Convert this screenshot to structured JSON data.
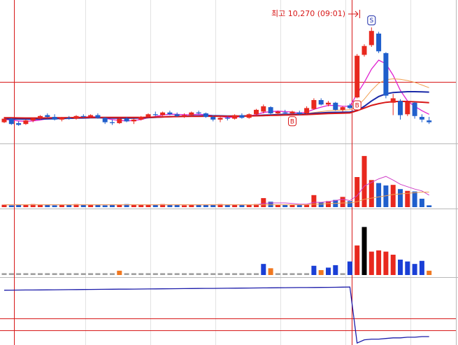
{
  "chart_data": [
    {
      "type": "candlestick",
      "open": [
        9200,
        9240,
        9190,
        9180,
        9220,
        9240,
        9280,
        9260,
        9230,
        9250,
        9240,
        9270,
        9260,
        9280,
        9250,
        9200,
        9190,
        9240,
        9210,
        9230,
        9260,
        9290,
        9280,
        9310,
        9290,
        9270,
        9280,
        9310,
        9300,
        9260,
        9230,
        9250,
        9240,
        9280,
        9250,
        9290,
        9320,
        9370,
        9300,
        9310,
        9300,
        9310,
        9300,
        9350,
        9450,
        9400,
        9420,
        9340,
        9390,
        9480,
        9960,
        10070,
        10200,
        9980,
        9420,
        9440,
        9290,
        9420,
        9260,
        9220
      ],
      "high": [
        9260,
        9250,
        9210,
        9230,
        9250,
        9280,
        9300,
        9290,
        9260,
        9270,
        9280,
        9290,
        9290,
        9300,
        9260,
        9230,
        9250,
        9260,
        9240,
        9270,
        9300,
        9320,
        9320,
        9330,
        9310,
        9300,
        9320,
        9330,
        9310,
        9280,
        9260,
        9270,
        9290,
        9300,
        9300,
        9350,
        9400,
        9380,
        9330,
        9340,
        9330,
        9330,
        9380,
        9470,
        9470,
        9440,
        9430,
        9380,
        9410,
        9970,
        10080,
        10270,
        10220,
        9990,
        9520,
        9460,
        9440,
        9430,
        9290,
        9260
      ],
      "low": [
        9190,
        9170,
        9160,
        9170,
        9200,
        9230,
        9250,
        9220,
        9210,
        9230,
        9230,
        9250,
        9250,
        9240,
        9180,
        9170,
        9180,
        9200,
        9180,
        9220,
        9250,
        9270,
        9270,
        9280,
        9260,
        9250,
        9270,
        9290,
        9250,
        9210,
        9200,
        9220,
        9230,
        9240,
        9240,
        9280,
        9300,
        9280,
        9280,
        9290,
        9290,
        9280,
        9290,
        9340,
        9390,
        9380,
        9330,
        9320,
        9350,
        9470,
        9940,
        10050,
        9980,
        9470,
        9280,
        9230,
        9270,
        9240,
        9200,
        9180
      ],
      "close": [
        9240,
        9180,
        9170,
        9220,
        9240,
        9270,
        9260,
        9230,
        9250,
        9240,
        9270,
        9260,
        9280,
        9250,
        9200,
        9190,
        9240,
        9210,
        9230,
        9260,
        9290,
        9280,
        9310,
        9290,
        9270,
        9280,
        9310,
        9300,
        9260,
        9230,
        9250,
        9240,
        9280,
        9250,
        9290,
        9340,
        9380,
        9300,
        9320,
        9300,
        9320,
        9290,
        9360,
        9450,
        9400,
        9420,
        9340,
        9370,
        9360,
        9950,
        10060,
        10230,
        10000,
        9500,
        9470,
        9280,
        9430,
        9270,
        9230,
        9200
      ],
      "up_color": "#e8281e",
      "down_color": "#1f5fcc",
      "ylim": [
        9000,
        10500
      ],
      "series": [
        {
          "color": "#e020d0",
          "values": [
            9230,
            9225,
            9215,
            9210,
            9215,
            9225,
            9240,
            9250,
            9250,
            9250,
            9255,
            9258,
            9262,
            9260,
            9245,
            9230,
            9220,
            9215,
            9220,
            9230,
            9250,
            9265,
            9280,
            9290,
            9290,
            9285,
            9285,
            9290,
            9285,
            9275,
            9265,
            9255,
            9255,
            9265,
            9270,
            9285,
            9310,
            9320,
            9325,
            9320,
            9315,
            9305,
            9315,
            9345,
            9370,
            9390,
            9390,
            9380,
            9380,
            9520,
            9650,
            9800,
            9900,
            9860,
            9730,
            9560,
            9440,
            9380,
            9330,
            9290
          ]
        },
        {
          "color": "#f0a050",
          "values": [
            9240,
            9240,
            9238,
            9236,
            9235,
            9236,
            9238,
            9240,
            9242,
            9244,
            9246,
            9248,
            9250,
            9250,
            9248,
            9245,
            9243,
            9242,
            9242,
            9244,
            9248,
            9252,
            9256,
            9260,
            9263,
            9265,
            9267,
            9269,
            9270,
            9270,
            9268,
            9266,
            9265,
            9266,
            9268,
            9272,
            9280,
            9285,
            9290,
            9292,
            9294,
            9295,
            9298,
            9310,
            9320,
            9330,
            9335,
            9338,
            9340,
            9380,
            9460,
            9560,
            9640,
            9680,
            9690,
            9685,
            9670,
            9650,
            9620,
            9590
          ]
        },
        {
          "color": "#1a2aa8",
          "values": [
            9240,
            9238,
            9236,
            9235,
            9235,
            9236,
            9238,
            9240,
            9242,
            9244,
            9246,
            9248,
            9250,
            9250,
            9249,
            9247,
            9246,
            9246,
            9247,
            9249,
            9252,
            9256,
            9260,
            9263,
            9266,
            9268,
            9270,
            9272,
            9273,
            9273,
            9272,
            9271,
            9270,
            9271,
            9272,
            9275,
            9280,
            9283,
            9286,
            9288,
            9290,
            9291,
            9293,
            9300,
            9305,
            9310,
            9312,
            9313,
            9315,
            9330,
            9380,
            9440,
            9490,
            9520,
            9535,
            9540,
            9545,
            9545,
            9542,
            9540
          ]
        },
        {
          "color": "#d81818",
          "values": [
            9250,
            9250,
            9249,
            9248,
            9248,
            9248,
            9249,
            9250,
            9251,
            9252,
            9253,
            9254,
            9255,
            9255,
            9255,
            9254,
            9254,
            9254,
            9254,
            9255,
            9256,
            9258,
            9260,
            9262,
            9264,
            9265,
            9266,
            9267,
            9268,
            9268,
            9268,
            9268,
            9268,
            9269,
            9270,
            9272,
            9275,
            9277,
            9279,
            9281,
            9283,
            9284,
            9286,
            9290,
            9294,
            9298,
            9300,
            9302,
            9305,
            9330,
            9360,
            9390,
            9410,
            9425,
            9432,
            9435,
            9434,
            9430,
            9426,
            9420
          ]
        }
      ],
      "annotation": "최고 10,270 (09:01)",
      "markers": [
        {
          "index": 40,
          "label": "B"
        },
        {
          "index": 49,
          "label": "B"
        },
        {
          "index": 51,
          "label": "S"
        }
      ]
    },
    {
      "type": "bar",
      "values": [
        4,
        3,
        4,
        4,
        5,
        4,
        4,
        3,
        4,
        4,
        5,
        4,
        4,
        4,
        3,
        4,
        4,
        5,
        4,
        4,
        4,
        4,
        5,
        4,
        4,
        3,
        4,
        4,
        4,
        4,
        5,
        4,
        4,
        4,
        4,
        5,
        15,
        9,
        4,
        4,
        4,
        4,
        4,
        20,
        8,
        10,
        12,
        17,
        10,
        50,
        85,
        45,
        40,
        36,
        37,
        30,
        27,
        26,
        14,
        3
      ],
      "ylim": [
        0,
        100
      ],
      "series": [
        {
          "color": "#d040c8",
          "values": [
            4,
            4,
            4,
            4,
            4,
            4,
            4,
            4,
            4,
            4,
            4,
            4,
            4,
            4,
            4,
            4,
            4,
            4,
            4,
            4,
            4,
            4,
            4,
            4,
            4,
            4,
            4,
            4,
            4,
            4,
            4,
            4,
            4,
            4,
            4,
            4,
            6,
            7,
            7,
            7,
            6,
            5,
            5,
            8,
            8,
            9,
            11,
            13,
            11,
            19,
            35,
            41,
            47,
            51,
            45,
            38,
            34,
            30,
            27,
            20
          ]
        },
        {
          "color": "#f0a050",
          "values": [
            4,
            4,
            4,
            4,
            4,
            4,
            4,
            4,
            4,
            4,
            4,
            4,
            4,
            4,
            4,
            4,
            4,
            4,
            4,
            4,
            4,
            4,
            4,
            4,
            4,
            4,
            4,
            4,
            4,
            4,
            4,
            4,
            4,
            4,
            4,
            4,
            4,
            4,
            4,
            4,
            4,
            4,
            4,
            5,
            5,
            6,
            6,
            7,
            7,
            9,
            13,
            15,
            17,
            19,
            21,
            22,
            23,
            24,
            25,
            25
          ]
        }
      ]
    },
    {
      "type": "bar",
      "values": [
        3,
        3,
        3,
        3,
        3,
        3,
        3,
        3,
        3,
        3,
        3,
        3,
        3,
        3,
        3,
        3,
        7,
        3,
        3,
        3,
        3,
        3,
        3,
        3,
        3,
        3,
        3,
        3,
        3,
        3,
        3,
        3,
        3,
        3,
        3,
        3,
        18,
        11,
        3,
        3,
        3,
        3,
        3,
        15,
        8,
        12,
        16,
        3,
        22,
        48,
        78,
        38,
        40,
        38,
        33,
        25,
        22,
        18,
        23,
        7
      ],
      "colors": [
        "#a0a0a0",
        "#a0a0a0",
        "#a0a0a0",
        "#a0a0a0",
        "#a0a0a0",
        "#a0a0a0",
        "#a0a0a0",
        "#a0a0a0",
        "#a0a0a0",
        "#a0a0a0",
        "#a0a0a0",
        "#a0a0a0",
        "#a0a0a0",
        "#a0a0a0",
        "#a0a0a0",
        "#a0a0a0",
        "#f07820",
        "#a0a0a0",
        "#a0a0a0",
        "#a0a0a0",
        "#a0a0a0",
        "#a0a0a0",
        "#a0a0a0",
        "#a0a0a0",
        "#a0a0a0",
        "#a0a0a0",
        "#a0a0a0",
        "#a0a0a0",
        "#a0a0a0",
        "#a0a0a0",
        "#a0a0a0",
        "#a0a0a0",
        "#a0a0a0",
        "#a0a0a0",
        "#a0a0a0",
        "#a0a0a0",
        "#1a3fd6",
        "#f07820",
        "#a0a0a0",
        "#a0a0a0",
        "#a0a0a0",
        "#a0a0a0",
        "#a0a0a0",
        "#1a3fd6",
        "#f07820",
        "#1a3fd6",
        "#1a3fd6",
        "#a0a0a0",
        "#1a3fd6",
        "#e8281e",
        "#000000",
        "#e8281e",
        "#e8281e",
        "#e8281e",
        "#e8281e",
        "#1a3fd6",
        "#1a3fd6",
        "#1a3fd6",
        "#1a3fd6",
        "#f07820"
      ],
      "ylim": [
        0,
        100
      ]
    },
    {
      "type": "line",
      "values": [
        84,
        84.1,
        84.2,
        84.3,
        84.4,
        84.5,
        84.6,
        84.7,
        84.8,
        84.9,
        85,
        85.1,
        85.2,
        85.3,
        85.4,
        85.5,
        85.6,
        85.7,
        85.8,
        85.9,
        86,
        86.1,
        86.2,
        86.3,
        86.4,
        86.5,
        86.6,
        86.7,
        86.8,
        86.9,
        87,
        87.1,
        87.2,
        87.3,
        87.4,
        87.5,
        87.6,
        87.7,
        87.8,
        87.9,
        88,
        88.1,
        88.2,
        88.3,
        88.4,
        88.5,
        88.6,
        88.8,
        89,
        2,
        7,
        8,
        8,
        9,
        10,
        10,
        11,
        11,
        12,
        12
      ],
      "color": "#1c1caa",
      "ylim": [
        0,
        100
      ]
    }
  ]
}
